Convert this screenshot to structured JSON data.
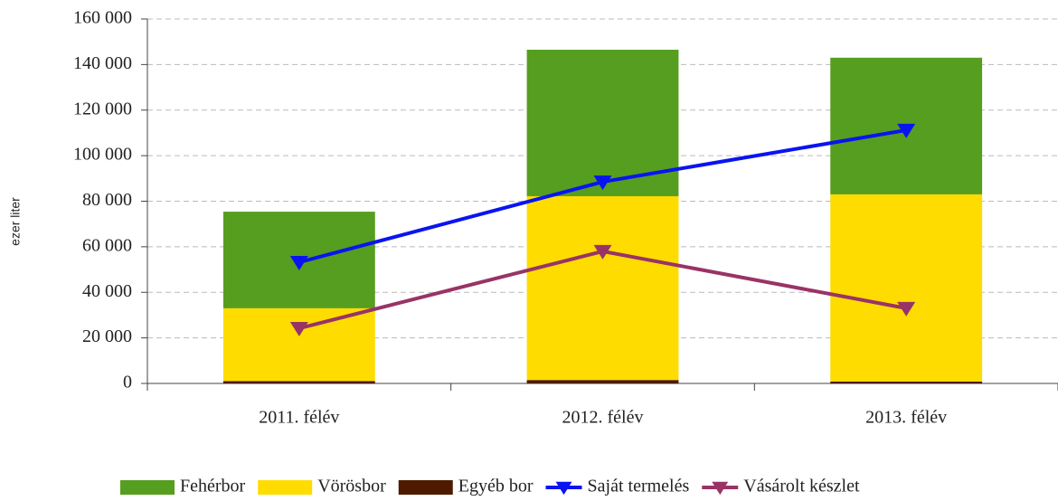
{
  "chart_data": {
    "type": "bar",
    "y_label": "ezer liter",
    "categories": [
      "2011. félév",
      "2012. félév",
      "2013. félév"
    ],
    "series": [
      {
        "name": "Fehérbor",
        "type": "bar",
        "color": "#569e1f",
        "values": [
          42400,
          64300,
          60000
        ]
      },
      {
        "name": "Vörösbor",
        "type": "bar",
        "color": "#ffdc00",
        "values": [
          32000,
          80700,
          82200
        ]
      },
      {
        "name": "Egyéb bor",
        "type": "bar",
        "color": "#4d1a00",
        "values": [
          1000,
          1500,
          800
        ]
      },
      {
        "name": "Saját termelés",
        "type": "line",
        "color": "#0a14f0",
        "values": [
          53200,
          88500,
          111200
        ]
      },
      {
        "name": "Vásárolt készlet",
        "type": "line",
        "color": "#993366",
        "values": [
          24200,
          58000,
          33000
        ]
      }
    ],
    "ylim": [
      0,
      160000
    ],
    "yticks": [
      0,
      {
        "value": 20000,
        "label": "20 000"
      },
      {
        "value": 40000,
        "label": "40 000"
      },
      {
        "value": 60000,
        "label": "60 000"
      },
      {
        "value": 80000,
        "label": "80 000"
      },
      {
        "value": 100000,
        "label": "100 000"
      },
      {
        "value": 120000,
        "label": "120 000"
      },
      {
        "value": 140000,
        "label": "140 000"
      },
      {
        "value": 160000,
        "label": "160 000"
      }
    ],
    "grid": true,
    "legend": "bottom"
  }
}
